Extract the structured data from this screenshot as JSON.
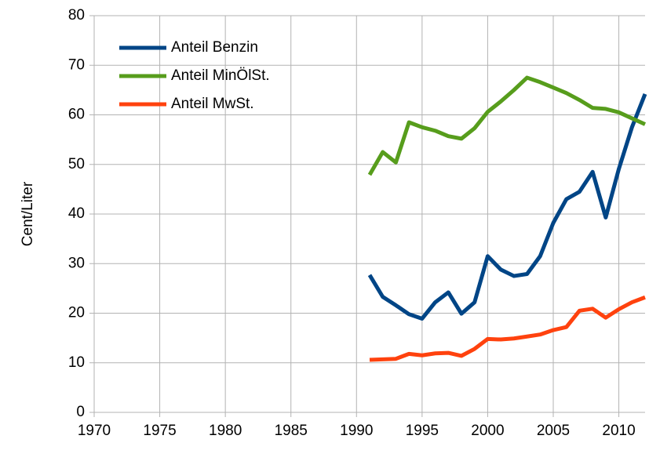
{
  "chart_data": {
    "type": "line",
    "y_label": "Cent/Liter",
    "x": [
      1991,
      1992,
      1993,
      1994,
      1995,
      1996,
      1997,
      1998,
      1999,
      2000,
      2001,
      2002,
      2003,
      2004,
      2005,
      2006,
      2007,
      2008,
      2009,
      2010,
      2011,
      2012
    ],
    "series": [
      {
        "name": "Anteil Benzin",
        "color": "#004586",
        "values": [
          27.7,
          23.3,
          21.6,
          19.8,
          18.9,
          22.2,
          24.2,
          19.9,
          22.2,
          31.5,
          28.8,
          27.5,
          27.9,
          31.5,
          38.2,
          43.0,
          44.5,
          48.5,
          39.3,
          49.1,
          57.5,
          64.2
        ]
      },
      {
        "name": "Anteil MinÖlSt.",
        "color": "#579d1c",
        "values": [
          47.9,
          52.5,
          50.4,
          58.5,
          57.5,
          56.8,
          55.7,
          55.2,
          57.3,
          60.6,
          62.7,
          65.0,
          67.5,
          66.6,
          65.5,
          64.4,
          63.0,
          61.4,
          61.2,
          60.5,
          59.3,
          58.1
        ]
      },
      {
        "name": "Anteil MwSt.",
        "color": "#ff420e",
        "values": [
          10.6,
          10.7,
          10.8,
          11.8,
          11.5,
          11.9,
          12.0,
          11.4,
          12.8,
          14.8,
          14.7,
          14.9,
          15.3,
          15.7,
          16.6,
          17.2,
          20.5,
          20.9,
          19.1,
          20.8,
          22.2,
          23.2
        ]
      }
    ],
    "xlim": [
      1970,
      2012
    ],
    "xticks": [
      1970,
      1975,
      1980,
      1985,
      1990,
      1995,
      2000,
      2005,
      2010
    ],
    "ylim": [
      0,
      80
    ],
    "yticks": [
      0,
      10,
      20,
      30,
      40,
      50,
      60,
      70,
      80
    ],
    "grid": true,
    "legend": "upper-left"
  }
}
